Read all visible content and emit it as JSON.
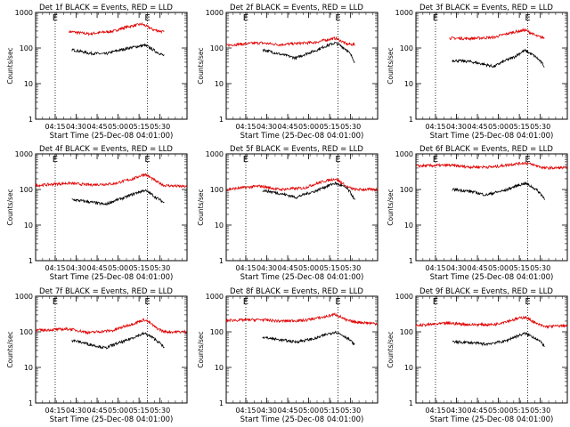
{
  "chart_data": [
    {
      "type": "line",
      "title": "Det 1f BLACK = Events, RED = LLD",
      "xlabel": "Start Time (25-Dec-08 04:01:00)",
      "ylabel": "Counts/sec",
      "series": [
        {
          "name": "LLD",
          "color": "red",
          "start": 240,
          "end": 920,
          "wave": [
            [
              240,
              290
            ],
            [
              380,
              250
            ],
            [
              560,
              300
            ],
            [
              640,
              380
            ],
            [
              760,
              470
            ],
            [
              840,
              330
            ],
            [
              920,
              280
            ]
          ]
        },
        {
          "name": "Events",
          "color": "black",
          "start": 260,
          "end": 920,
          "wave": [
            [
              260,
              90
            ],
            [
              380,
              72
            ],
            [
              500,
              68
            ],
            [
              640,
              95
            ],
            [
              780,
              120
            ],
            [
              860,
              80
            ],
            [
              920,
              60
            ]
          ]
        }
      ]
    },
    {
      "type": "line",
      "title": "Det 2f BLACK = Events, RED = LLD",
      "xlabel": "Start Time (25-Dec-08 04:01:00)",
      "ylabel": "Counts/sec",
      "series": [
        {
          "name": "LLD",
          "color": "red",
          "start": 0,
          "end": 920,
          "wave": [
            [
              0,
              120
            ],
            [
              240,
              140
            ],
            [
              380,
              125
            ],
            [
              640,
              145
            ],
            [
              780,
              190
            ],
            [
              860,
              130
            ],
            [
              920,
              125
            ]
          ]
        },
        {
          "name": "Events",
          "color": "black",
          "start": 260,
          "end": 920,
          "wave": [
            [
              260,
              90
            ],
            [
              380,
              68
            ],
            [
              500,
              52
            ],
            [
              640,
              85
            ],
            [
              780,
              140
            ],
            [
              860,
              90
            ],
            [
              920,
              40
            ]
          ]
        }
      ]
    },
    {
      "type": "line",
      "title": "Det 3f BLACK = Events, RED = LLD",
      "xlabel": "Start Time (25-Dec-08 04:01:00)",
      "ylabel": "Counts/sec",
      "series": [
        {
          "name": "LLD",
          "color": "red",
          "start": 240,
          "end": 920,
          "wave": [
            [
              240,
              190
            ],
            [
              380,
              185
            ],
            [
              560,
              200
            ],
            [
              700,
              280
            ],
            [
              780,
              320
            ],
            [
              860,
              220
            ],
            [
              920,
              190
            ]
          ]
        },
        {
          "name": "Events",
          "color": "black",
          "start": 260,
          "end": 920,
          "wave": [
            [
              260,
              45
            ],
            [
              380,
              42
            ],
            [
              560,
              30
            ],
            [
              700,
              55
            ],
            [
              780,
              85
            ],
            [
              860,
              55
            ],
            [
              920,
              30
            ]
          ]
        }
      ]
    },
    {
      "type": "line",
      "title": "Det 4f BLACK = Events, RED = LLD",
      "xlabel": "Start Time (25-Dec-08 04:01:00)",
      "ylabel": "Counts/sec",
      "series": [
        {
          "name": "LLD",
          "color": "red",
          "start": 0,
          "end": 1080,
          "wave": [
            [
              0,
              130
            ],
            [
              240,
              150
            ],
            [
              380,
              135
            ],
            [
              560,
              145
            ],
            [
              700,
              200
            ],
            [
              780,
              270
            ],
            [
              860,
              170
            ],
            [
              920,
              130
            ],
            [
              1080,
              120
            ]
          ]
        },
        {
          "name": "Events",
          "color": "black",
          "start": 260,
          "end": 920,
          "wave": [
            [
              260,
              52
            ],
            [
              380,
              45
            ],
            [
              500,
              38
            ],
            [
              640,
              60
            ],
            [
              780,
              95
            ],
            [
              860,
              60
            ],
            [
              920,
              42
            ]
          ]
        }
      ]
    },
    {
      "type": "line",
      "title": "Det 5f BLACK = Events, RED = LLD",
      "xlabel": "Start Time (25-Dec-08 04:01:00)",
      "ylabel": "Counts/sec",
      "series": [
        {
          "name": "LLD",
          "color": "red",
          "start": 0,
          "end": 1080,
          "wave": [
            [
              0,
              100
            ],
            [
              240,
              125
            ],
            [
              380,
              100
            ],
            [
              560,
              110
            ],
            [
              700,
              170
            ],
            [
              780,
              200
            ],
            [
              860,
              120
            ],
            [
              920,
              100
            ],
            [
              1080,
              100
            ]
          ]
        },
        {
          "name": "Events",
          "color": "black",
          "start": 260,
          "end": 920,
          "wave": [
            [
              260,
              95
            ],
            [
              380,
              78
            ],
            [
              500,
              60
            ],
            [
              640,
              90
            ],
            [
              780,
              150
            ],
            [
              860,
              110
            ],
            [
              920,
              50
            ]
          ]
        }
      ]
    },
    {
      "type": "line",
      "title": "Det 6f BLACK = Events, RED = LLD",
      "xlabel": "Start Time (25-Dec-08 04:01:00)",
      "ylabel": "Counts/sec",
      "series": [
        {
          "name": "LLD",
          "color": "red",
          "start": 0,
          "end": 1080,
          "wave": [
            [
              0,
              460
            ],
            [
              240,
              480
            ],
            [
              380,
              430
            ],
            [
              560,
              430
            ],
            [
              700,
              520
            ],
            [
              780,
              560
            ],
            [
              860,
              470
            ],
            [
              920,
              400
            ],
            [
              1080,
              410
            ]
          ]
        },
        {
          "name": "Events",
          "color": "black",
          "start": 260,
          "end": 920,
          "wave": [
            [
              260,
              100
            ],
            [
              380,
              90
            ],
            [
              500,
              70
            ],
            [
              640,
              95
            ],
            [
              780,
              150
            ],
            [
              860,
              100
            ],
            [
              920,
              55
            ]
          ]
        }
      ]
    },
    {
      "type": "line",
      "title": "Det 7f BLACK = Events, RED = LLD",
      "xlabel": "Start Time (25-Dec-08 04:01:00)",
      "ylabel": "Counts/sec",
      "series": [
        {
          "name": "LLD",
          "color": "red",
          "start": 0,
          "end": 1080,
          "wave": [
            [
              0,
              110
            ],
            [
              240,
              120
            ],
            [
              380,
              95
            ],
            [
              560,
              110
            ],
            [
              700,
              170
            ],
            [
              780,
              220
            ],
            [
              860,
              130
            ],
            [
              920,
              100
            ],
            [
              1080,
              100
            ]
          ]
        },
        {
          "name": "Events",
          "color": "black",
          "start": 260,
          "end": 920,
          "wave": [
            [
              260,
              58
            ],
            [
              380,
              45
            ],
            [
              500,
              35
            ],
            [
              640,
              55
            ],
            [
              780,
              90
            ],
            [
              860,
              60
            ],
            [
              920,
              35
            ]
          ]
        }
      ]
    },
    {
      "type": "line",
      "title": "Det 8f BLACK = Events, RED = LLD",
      "xlabel": "Start Time (25-Dec-08 04:01:00)",
      "ylabel": "Counts/sec",
      "series": [
        {
          "name": "LLD",
          "color": "red",
          "start": 0,
          "end": 1080,
          "wave": [
            [
              0,
              210
            ],
            [
              240,
              220
            ],
            [
              380,
              200
            ],
            [
              560,
              210
            ],
            [
              700,
              260
            ],
            [
              780,
              310
            ],
            [
              860,
              210
            ],
            [
              920,
              190
            ],
            [
              1080,
              170
            ]
          ]
        },
        {
          "name": "Events",
          "color": "black",
          "start": 260,
          "end": 920,
          "wave": [
            [
              260,
              70
            ],
            [
              380,
              60
            ],
            [
              500,
              52
            ],
            [
              640,
              65
            ],
            [
              780,
              100
            ],
            [
              860,
              70
            ],
            [
              920,
              42
            ]
          ]
        }
      ]
    },
    {
      "type": "line",
      "title": "Det 9f BLACK = Events, RED = LLD",
      "xlabel": "Start Time (25-Dec-08 04:01:00)",
      "ylabel": "Counts/sec",
      "series": [
        {
          "name": "LLD",
          "color": "red",
          "start": 0,
          "end": 1080,
          "wave": [
            [
              0,
              150
            ],
            [
              240,
              175
            ],
            [
              380,
              160
            ],
            [
              560,
              160
            ],
            [
              700,
              220
            ],
            [
              780,
              260
            ],
            [
              860,
              170
            ],
            [
              920,
              140
            ],
            [
              1080,
              150
            ]
          ]
        },
        {
          "name": "Events",
          "color": "black",
          "start": 260,
          "end": 920,
          "wave": [
            [
              260,
              52
            ],
            [
              380,
              50
            ],
            [
              500,
              45
            ],
            [
              640,
              55
            ],
            [
              780,
              90
            ],
            [
              860,
              65
            ],
            [
              920,
              40
            ]
          ]
        }
      ]
    }
  ],
  "shared_axes": {
    "x_units": "seconds since 04:01:00",
    "xlim": [
      0,
      1080
    ],
    "ylim": [
      1,
      1000
    ],
    "yscale": "log",
    "xticks": [
      {
        "v": 840,
        "label": "04:15"
      },
      {
        "v": 1740,
        "label": "04:30"
      },
      {
        "v": 2640,
        "label": "04:45"
      },
      {
        "v": 3540,
        "label": "05:00"
      },
      {
        "v": 4440,
        "label": "05:15"
      },
      {
        "v": 5340,
        "label": "05:30"
      }
    ],
    "yticks": [
      {
        "v": 1,
        "label": "1"
      },
      {
        "v": 10,
        "label": "10"
      },
      {
        "v": 100,
        "label": "100"
      },
      {
        "v": 1000,
        "label": "1000"
      }
    ],
    "markers": [
      {
        "v": 840,
        "label": "E"
      },
      {
        "v": 4800,
        "label": "E"
      }
    ]
  }
}
